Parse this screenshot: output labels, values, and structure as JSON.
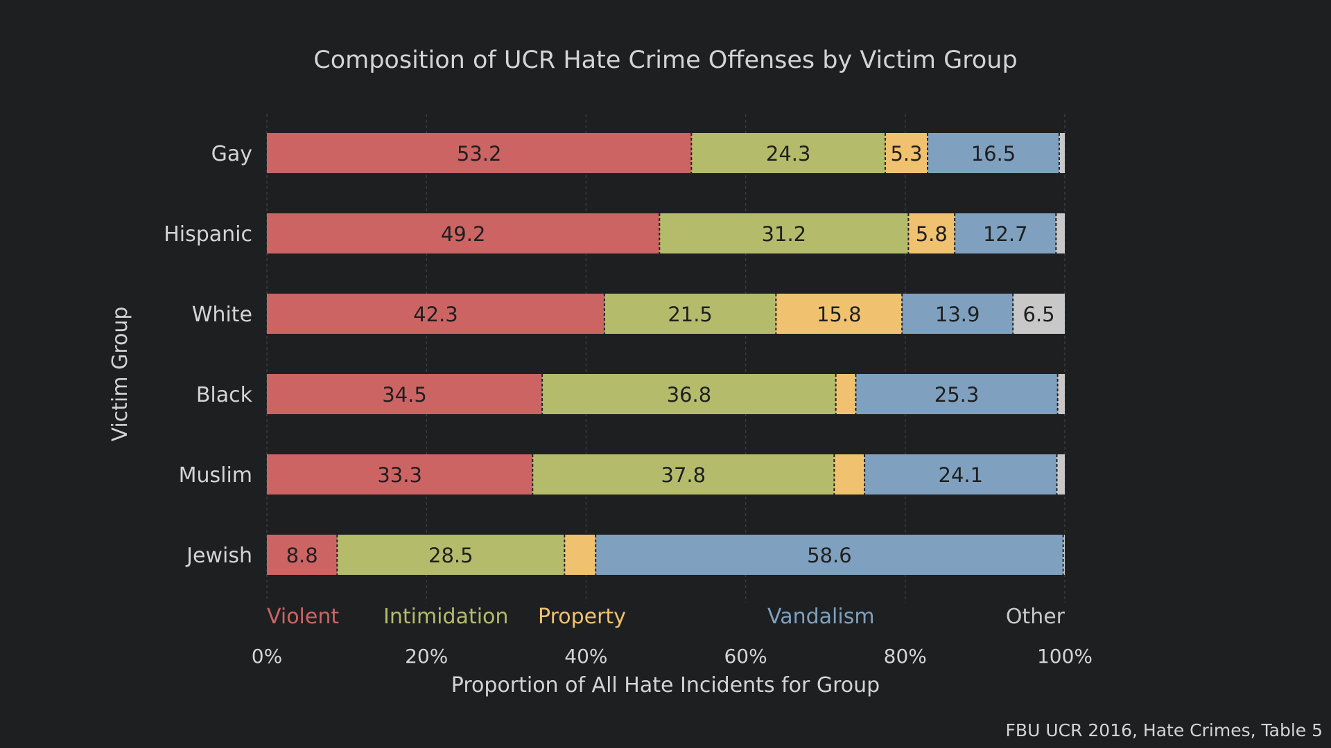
{
  "chart_data": {
    "type": "bar",
    "orientation": "horizontal",
    "stacked": true,
    "title": "Composition of UCR Hate Crime Offenses by Victim Group",
    "xlabel": "Proportion of All Hate Incidents for Group",
    "ylabel": "Victim Group",
    "source": "FBU UCR 2016, Hate Crimes, Table 5",
    "xlim": [
      0,
      100
    ],
    "xticks": [
      0,
      20,
      40,
      60,
      80,
      100
    ],
    "xtick_labels": [
      "0%",
      "20%",
      "40%",
      "60%",
      "80%",
      "100%"
    ],
    "grid": true,
    "legend_placement": "bottom, inline above x-axis",
    "categories": [
      "Gay",
      "Hispanic",
      "White",
      "Black",
      "Muslim",
      "Jewish"
    ],
    "series": [
      {
        "name": "Violent",
        "color": "#cd6464",
        "values": [
          53.2,
          49.2,
          42.3,
          34.5,
          33.3,
          8.8
        ],
        "labels": [
          "53.2",
          "49.2",
          "42.3",
          "34.5",
          "33.3",
          "8.8"
        ]
      },
      {
        "name": "Intimidation",
        "color": "#b4bc6c",
        "values": [
          24.3,
          31.2,
          21.5,
          36.8,
          37.8,
          28.5
        ],
        "labels": [
          "24.3",
          "31.2",
          "21.5",
          "36.8",
          "37.8",
          "28.5"
        ]
      },
      {
        "name": "Property",
        "color": "#f0c26f",
        "values": [
          5.3,
          5.8,
          15.8,
          2.5,
          3.8,
          3.9
        ],
        "labels": [
          "5.3",
          "5.8",
          "15.8",
          "",
          "",
          ""
        ]
      },
      {
        "name": "Vandalism",
        "color": "#7fa1bf",
        "values": [
          16.5,
          12.7,
          13.9,
          25.3,
          24.1,
          58.6
        ],
        "labels": [
          "16.5",
          "12.7",
          "13.9",
          "25.3",
          "24.1",
          "58.6"
        ]
      },
      {
        "name": "Other",
        "color": "#c8c8c8",
        "values": [
          0.7,
          1.1,
          6.5,
          0.9,
          1.0,
          0.2
        ],
        "labels": [
          "",
          "",
          "6.5",
          "",
          "",
          ""
        ]
      }
    ]
  }
}
